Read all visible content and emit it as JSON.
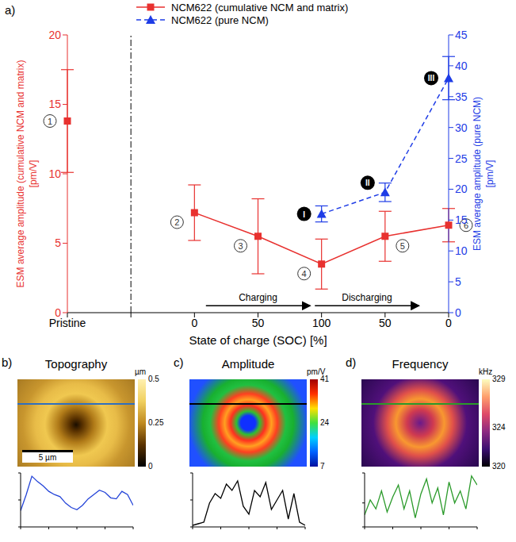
{
  "chart_data": [
    {
      "panel_label": "a)",
      "type": "line",
      "categories": [
        "Pristine",
        null,
        "0",
        "50",
        "100",
        "50",
        "0"
      ],
      "x_label": "State of charge (SOC) [%]",
      "y_label": "ESM average amplitude (cumulative NCM and matrix) [pm/V]",
      "y2_label": "ESM average amplitude (pure NCM) [pm/V]",
      "ylim": [
        0,
        20
      ],
      "yticks": [
        0,
        5,
        10,
        15,
        20
      ],
      "y2lim": [
        0,
        45
      ],
      "y2ticks": [
        0,
        5,
        10,
        15,
        20,
        25,
        30,
        35,
        40,
        45
      ],
      "legend": "top",
      "series": [
        {
          "name": "NCM622 (cumulative NCM and matrix)",
          "color": "#e8312f",
          "marker": "square",
          "line_style": "solid",
          "values": [
            13.8,
            null,
            7.2,
            5.5,
            3.5,
            5.5,
            6.3
          ],
          "errors": [
            3.7,
            null,
            2.0,
            2.7,
            1.8,
            1.8,
            1.2
          ],
          "point_labels": [
            "1",
            null,
            "2",
            "3",
            "4",
            "5",
            "6"
          ]
        },
        {
          "name": "NCM622 (pure NCM)",
          "color": "#1e3ce6",
          "marker": "triangle",
          "line_style": "dashed",
          "axis": "y2",
          "values": [
            null,
            null,
            null,
            null,
            16,
            19.5,
            38
          ],
          "errors": [
            null,
            null,
            null,
            null,
            1.3,
            1.5,
            3.5
          ],
          "point_labels": [
            null,
            null,
            null,
            null,
            "I",
            "II",
            "III"
          ]
        }
      ],
      "annotations": [
        "Charging",
        "Discharging"
      ]
    },
    {
      "panel_label": "b)",
      "type": "map",
      "title": "Topography",
      "colorbar": {
        "range": [
          0,
          0.5
        ],
        "ticks": [
          0,
          0.25,
          0.5
        ],
        "unit": "µm"
      },
      "scale_bar": "5 µm",
      "profile": {
        "type": "line",
        "color": "#2343d8",
        "tick_labels": false,
        "x": [
          0,
          0.5,
          1,
          1.5,
          2,
          2.5,
          3,
          3.5,
          4,
          4.5,
          5,
          5.5,
          6,
          6.5,
          7,
          7.5,
          8,
          8.5,
          9,
          9.5,
          10
        ],
        "values": [
          0.15,
          0.3,
          0.47,
          0.42,
          0.38,
          0.33,
          0.3,
          0.28,
          0.22,
          0.18,
          0.16,
          0.2,
          0.26,
          0.3,
          0.34,
          0.32,
          0.27,
          0.26,
          0.33,
          0.3,
          0.2
        ],
        "xlim": [
          0,
          10
        ],
        "xticks": [
          0,
          2.5,
          5,
          7.5,
          10
        ],
        "ylim": [
          0,
          0.5
        ],
        "yticks": [
          0,
          0.25,
          0.5
        ]
      }
    },
    {
      "panel_label": "c)",
      "type": "map",
      "title": "Amplitude",
      "colorbar": {
        "range": [
          7,
          41
        ],
        "ticks": [
          7,
          24,
          41
        ],
        "unit": "pm/V"
      },
      "profile": {
        "type": "line",
        "color": "#000000",
        "tick_labels": false,
        "x": [
          0,
          0.5,
          1,
          1.5,
          2,
          2.5,
          3,
          3.5,
          4,
          4.5,
          5,
          5.5,
          6,
          6.5,
          7,
          7.5,
          8,
          8.5,
          9,
          9.5,
          10
        ],
        "values": [
          8,
          9,
          10,
          22,
          28,
          25,
          34,
          30,
          36,
          20,
          15,
          30,
          26,
          35,
          18,
          24,
          30,
          12,
          28,
          10,
          8
        ],
        "xlim": [
          0,
          10
        ],
        "xticks": [
          0,
          2.5,
          5,
          7.5,
          10
        ],
        "ylim": [
          7,
          41
        ],
        "yticks": [
          7,
          24,
          41
        ]
      }
    },
    {
      "panel_label": "d)",
      "type": "map",
      "title": "Frequency",
      "colorbar": {
        "range": [
          320,
          329
        ],
        "ticks": [
          320,
          324,
          329
        ],
        "unit": "kHz"
      },
      "profile": {
        "type": "line",
        "color": "#2a9a2a",
        "tick_labels": false,
        "x": [
          0,
          0.5,
          1,
          1.5,
          2,
          2.5,
          3,
          3.5,
          4,
          4.5,
          5,
          5.5,
          6,
          6.5,
          7,
          7.5,
          8,
          8.5,
          9,
          9.5,
          10
        ],
        "values": [
          322,
          324.5,
          323,
          326,
          322.5,
          325,
          327,
          323,
          326,
          321.5,
          325.5,
          328,
          324,
          326.5,
          322,
          327.5,
          324,
          326,
          323,
          328.5,
          327
        ],
        "xlim": [
          0,
          10
        ],
        "xticks": [
          0,
          2.5,
          5,
          7.5,
          10
        ],
        "ylim": [
          320,
          329
        ],
        "yticks": [
          320,
          324,
          329
        ]
      }
    }
  ]
}
